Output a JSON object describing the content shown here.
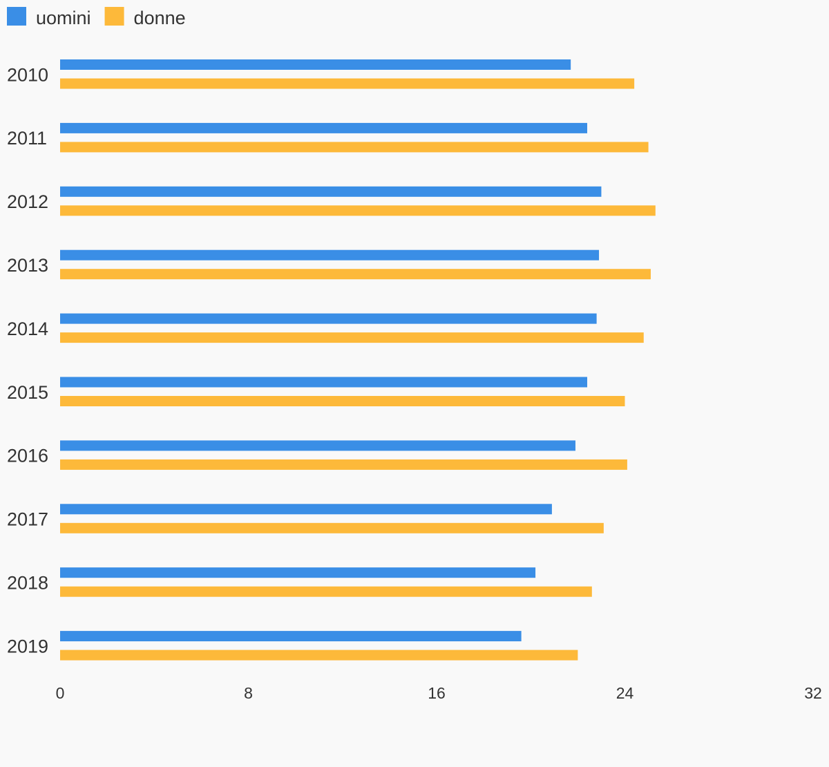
{
  "chart_data": {
    "type": "bar",
    "orientation": "horizontal",
    "categories": [
      "2010",
      "2011",
      "2012",
      "2013",
      "2014",
      "2015",
      "2016",
      "2017",
      "2018",
      "2019"
    ],
    "series": [
      {
        "name": "uomini",
        "color": "#3a8ee6",
        "values": [
          21.7,
          22.4,
          23.0,
          22.9,
          22.8,
          22.4,
          21.9,
          20.9,
          20.2,
          19.6
        ]
      },
      {
        "name": "donne",
        "color": "#fdb93a",
        "values": [
          24.4,
          25.0,
          25.3,
          25.1,
          24.8,
          24.0,
          24.1,
          23.1,
          22.6,
          22.0
        ]
      }
    ],
    "xlim": [
      0,
      32
    ],
    "xticks": [
      "0",
      "8",
      "16",
      "24",
      "32"
    ],
    "title": "",
    "xlabel": "",
    "ylabel": "",
    "legend_position": "top-left",
    "grid": false
  }
}
